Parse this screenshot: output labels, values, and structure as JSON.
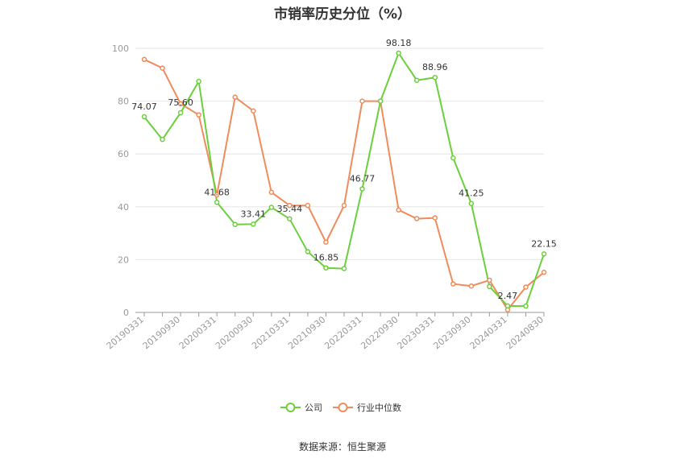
{
  "chart_data": {
    "type": "line",
    "title": "市销率历史分位（%）",
    "ylim": [
      0,
      100
    ],
    "y_ticks": [
      0,
      20,
      40,
      60,
      80,
      100
    ],
    "x": [
      "20190331",
      "20190630",
      "20190930",
      "20191231",
      "20200331",
      "20200630",
      "20200930",
      "20201231",
      "20210331",
      "20210630",
      "20210930",
      "20211231",
      "20220331",
      "20220630",
      "20220930",
      "20221231",
      "20230331",
      "20230630",
      "20230930",
      "20231231",
      "20240331",
      "20240630",
      "20240830"
    ],
    "x_tick_labels": [
      "20190331",
      "20190930",
      "20200331",
      "20200930",
      "20210331",
      "20210930",
      "20220331",
      "20220930",
      "20230331",
      "20230930",
      "20240331",
      "20240830"
    ],
    "grid": true,
    "legend": "bottom",
    "series": [
      {
        "name": "公司",
        "color": "#6ccf3c",
        "values": [
          74.07,
          65.5,
          75.6,
          87.5,
          41.68,
          33.3,
          33.41,
          39.8,
          35.44,
          23.0,
          16.85,
          16.6,
          46.77,
          80.0,
          98.18,
          87.9,
          88.96,
          58.5,
          41.25,
          9.8,
          2.47,
          2.4,
          22.15
        ],
        "labels": {
          "0": "74.07",
          "2": "75.60",
          "4": "41.68",
          "6": "33.41",
          "8": "35.44",
          "10": "16.85",
          "12": "46.77",
          "14": "98.18",
          "16": "88.96",
          "18": "41.25",
          "20": "2.47",
          "22": "22.15"
        }
      },
      {
        "name": "行业中位数",
        "color": "#f08b5c",
        "values": [
          95.8,
          92.5,
          79.0,
          74.8,
          44.5,
          81.5,
          76.3,
          45.5,
          40.5,
          40.5,
          26.6,
          40.5,
          80.0,
          80.0,
          38.8,
          35.5,
          35.8,
          10.8,
          10.0,
          12.2,
          1.0,
          9.6,
          15.2
        ]
      }
    ]
  },
  "source": "数据来源：恒生聚源"
}
